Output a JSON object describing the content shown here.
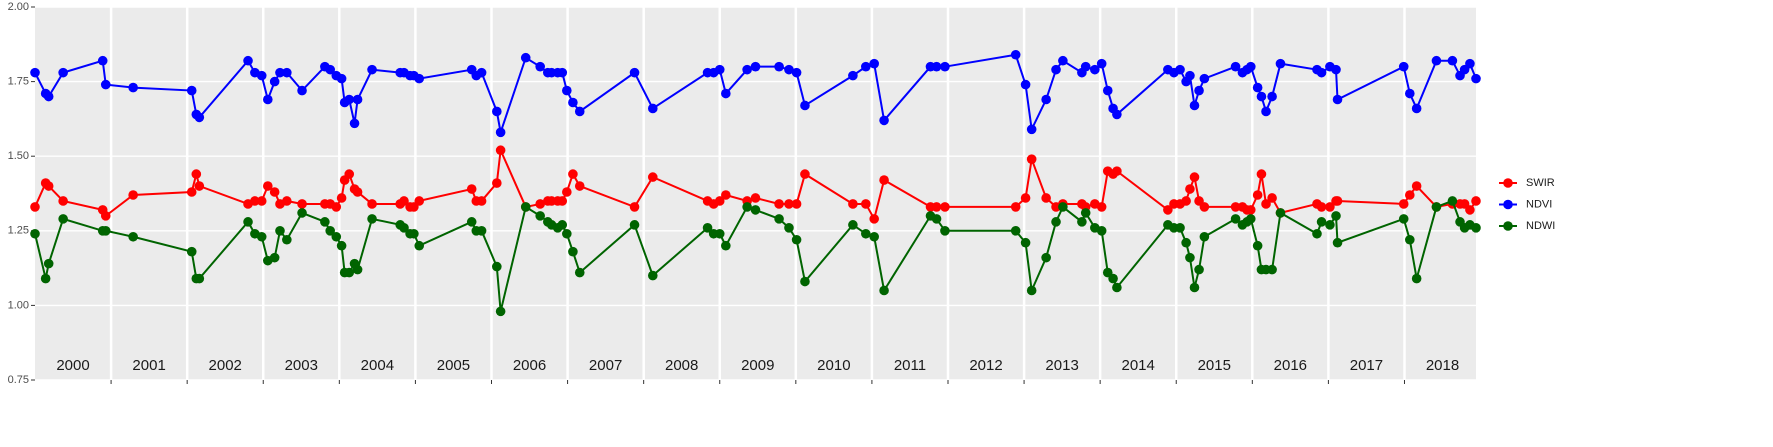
{
  "chart_data": {
    "type": "line",
    "x": [
      2000.0,
      2000.14,
      2000.18,
      2000.37,
      2000.89,
      2000.93,
      2001.29,
      2002.06,
      2002.12,
      2002.16,
      2002.8,
      2002.89,
      2002.98,
      2003.06,
      2003.15,
      2003.22,
      2003.31,
      2003.51,
      2003.81,
      2003.88,
      2003.96,
      2004.03,
      2004.07,
      2004.13,
      2004.2,
      2004.24,
      2004.43,
      2004.8,
      2004.85,
      2004.93,
      2004.98,
      2005.05,
      2005.74,
      2005.8,
      2005.87,
      2006.07,
      2006.12,
      2006.45,
      2006.64,
      2006.74,
      2006.79,
      2006.87,
      2006.93,
      2006.99,
      2007.07,
      2007.16,
      2007.88,
      2008.12,
      2008.84,
      2008.92,
      2009.0,
      2009.08,
      2009.36,
      2009.47,
      2009.78,
      2009.91,
      2010.01,
      2010.12,
      2010.75,
      2010.92,
      2011.03,
      2011.16,
      2011.77,
      2011.85,
      2011.96,
      2012.89,
      2013.02,
      2013.1,
      2013.29,
      2013.42,
      2013.51,
      2013.76,
      2013.81,
      2013.93,
      2014.02,
      2014.1,
      2014.17,
      2014.22,
      2014.89,
      2014.97,
      2015.05,
      2015.13,
      2015.18,
      2015.24,
      2015.3,
      2015.37,
      2015.78,
      2015.87,
      2015.93,
      2015.98,
      2016.07,
      2016.12,
      2016.18,
      2016.26,
      2016.37,
      2016.85,
      2016.91,
      2017.02,
      2017.1,
      2017.12,
      2017.99,
      2018.07,
      2018.16,
      2018.42,
      2018.63,
      2018.73,
      2018.79,
      2018.86,
      2018.94
    ],
    "series": [
      {
        "name": "SWIR",
        "color": "#ff0000",
        "values": [
          1.33,
          1.41,
          1.4,
          1.35,
          1.32,
          1.3,
          1.37,
          1.38,
          1.44,
          1.4,
          1.34,
          1.35,
          1.35,
          1.4,
          1.38,
          1.34,
          1.35,
          1.34,
          1.34,
          1.34,
          1.33,
          1.36,
          1.42,
          1.44,
          1.39,
          1.38,
          1.34,
          1.34,
          1.35,
          1.33,
          1.33,
          1.35,
          1.39,
          1.35,
          1.35,
          1.41,
          1.52,
          1.33,
          1.34,
          1.35,
          1.35,
          1.35,
          1.35,
          1.38,
          1.44,
          1.4,
          1.33,
          1.43,
          1.35,
          1.34,
          1.35,
          1.37,
          1.35,
          1.36,
          1.34,
          1.34,
          1.34,
          1.44,
          1.34,
          1.34,
          1.29,
          1.42,
          1.33,
          1.33,
          1.33,
          1.33,
          1.36,
          1.49,
          1.36,
          1.33,
          1.34,
          1.34,
          1.33,
          1.34,
          1.33,
          1.45,
          1.44,
          1.45,
          1.32,
          1.34,
          1.34,
          1.35,
          1.39,
          1.43,
          1.35,
          1.33,
          1.33,
          1.33,
          1.32,
          1.32,
          1.37,
          1.44,
          1.34,
          1.36,
          1.31,
          1.34,
          1.33,
          1.33,
          1.35,
          1.35,
          1.34,
          1.37,
          1.4,
          1.33,
          1.34,
          1.34,
          1.34,
          1.32,
          1.35
        ]
      },
      {
        "name": "NDVI",
        "color": "#0000ff",
        "values": [
          1.78,
          1.71,
          1.7,
          1.78,
          1.82,
          1.74,
          1.73,
          1.72,
          1.64,
          1.63,
          1.82,
          1.78,
          1.77,
          1.69,
          1.75,
          1.78,
          1.78,
          1.72,
          1.8,
          1.79,
          1.77,
          1.76,
          1.68,
          1.69,
          1.61,
          1.69,
          1.79,
          1.78,
          1.78,
          1.77,
          1.77,
          1.76,
          1.79,
          1.77,
          1.78,
          1.65,
          1.58,
          1.83,
          1.8,
          1.78,
          1.78,
          1.78,
          1.78,
          1.72,
          1.68,
          1.65,
          1.78,
          1.66,
          1.78,
          1.78,
          1.79,
          1.71,
          1.79,
          1.8,
          1.8,
          1.79,
          1.78,
          1.67,
          1.77,
          1.8,
          1.81,
          1.62,
          1.8,
          1.8,
          1.8,
          1.84,
          1.74,
          1.59,
          1.69,
          1.79,
          1.82,
          1.78,
          1.8,
          1.79,
          1.81,
          1.72,
          1.66,
          1.64,
          1.79,
          1.78,
          1.79,
          1.75,
          1.77,
          1.67,
          1.72,
          1.76,
          1.8,
          1.78,
          1.79,
          1.8,
          1.73,
          1.7,
          1.65,
          1.7,
          1.81,
          1.79,
          1.78,
          1.8,
          1.79,
          1.69,
          1.8,
          1.71,
          1.66,
          1.82,
          1.82,
          1.77,
          1.79,
          1.81,
          1.76
        ]
      },
      {
        "name": "NDWI",
        "color": "#006400",
        "values": [
          1.24,
          1.09,
          1.14,
          1.29,
          1.25,
          1.25,
          1.23,
          1.18,
          1.09,
          1.09,
          1.28,
          1.24,
          1.23,
          1.15,
          1.16,
          1.25,
          1.22,
          1.31,
          1.28,
          1.25,
          1.23,
          1.2,
          1.11,
          1.11,
          1.14,
          1.12,
          1.29,
          1.27,
          1.26,
          1.24,
          1.24,
          1.2,
          1.28,
          1.25,
          1.25,
          1.13,
          0.98,
          1.33,
          1.3,
          1.28,
          1.27,
          1.26,
          1.27,
          1.24,
          1.18,
          1.11,
          1.27,
          1.1,
          1.26,
          1.24,
          1.24,
          1.2,
          1.33,
          1.32,
          1.29,
          1.26,
          1.22,
          1.08,
          1.27,
          1.24,
          1.23,
          1.05,
          1.3,
          1.29,
          1.25,
          1.25,
          1.21,
          1.05,
          1.16,
          1.28,
          1.33,
          1.28,
          1.31,
          1.26,
          1.25,
          1.11,
          1.09,
          1.06,
          1.27,
          1.26,
          1.26,
          1.21,
          1.16,
          1.06,
          1.12,
          1.23,
          1.29,
          1.27,
          1.28,
          1.29,
          1.2,
          1.12,
          1.12,
          1.12,
          1.31,
          1.24,
          1.28,
          1.27,
          1.3,
          1.21,
          1.29,
          1.22,
          1.09,
          1.33,
          1.35,
          1.28,
          1.26,
          1.27,
          1.26
        ]
      }
    ],
    "xlim": [
      2000,
      2018.94
    ],
    "xticks": [
      2001,
      2002,
      2003,
      2004,
      2005,
      2006,
      2007,
      2008,
      2009,
      2010,
      2011,
      2012,
      2013,
      2014,
      2015,
      2016,
      2017,
      2018
    ],
    "year_labels": [
      {
        "value": 2000.5,
        "label": "2000"
      },
      {
        "value": 2001.5,
        "label": "2001"
      },
      {
        "value": 2002.5,
        "label": "2002"
      },
      {
        "value": 2003.5,
        "label": "2003"
      },
      {
        "value": 2004.5,
        "label": "2004"
      },
      {
        "value": 2005.5,
        "label": "2005"
      },
      {
        "value": 2006.5,
        "label": "2006"
      },
      {
        "value": 2007.5,
        "label": "2007"
      },
      {
        "value": 2008.5,
        "label": "2008"
      },
      {
        "value": 2009.5,
        "label": "2009"
      },
      {
        "value": 2010.5,
        "label": "2010"
      },
      {
        "value": 2011.5,
        "label": "2011"
      },
      {
        "value": 2012.5,
        "label": "2012"
      },
      {
        "value": 2013.5,
        "label": "2013"
      },
      {
        "value": 2014.5,
        "label": "2014"
      },
      {
        "value": 2015.5,
        "label": "2015"
      },
      {
        "value": 2016.5,
        "label": "2016"
      },
      {
        "value": 2017.5,
        "label": "2017"
      },
      {
        "value": 2018.5,
        "label": "2018"
      }
    ],
    "ylim": [
      0.75,
      2.0
    ],
    "yticks": [
      0.75,
      {
        "value": 1.0,
        "label": "1.00"
      },
      1.25,
      {
        "value": 1.5,
        "label": "1.50"
      },
      1.75,
      {
        "value": 2.0,
        "label": "2.00"
      }
    ],
    "grid": true,
    "legend": "right"
  }
}
